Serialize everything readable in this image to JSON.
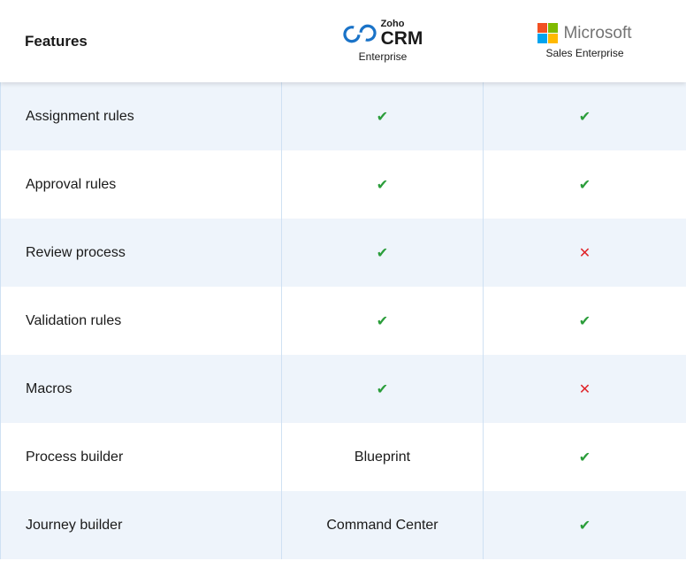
{
  "header": {
    "features": "Features",
    "zoho": {
      "brand": "Zoho",
      "product": "CRM",
      "edition": "Enterprise"
    },
    "microsoft": {
      "brand": "Microsoft",
      "edition": "Sales Enterprise"
    }
  },
  "table": {
    "row_colors": [
      "#eef4fb",
      "#ffffff"
    ],
    "rows": [
      {
        "feature": "Assignment rules",
        "zoho": {
          "text": "✔",
          "color": "#2a9d3a"
        },
        "microsoft": {
          "text": "✔",
          "color": "#2a9d3a"
        }
      },
      {
        "feature": "Approval rules",
        "zoho": {
          "text": "✔",
          "color": "#2a9d3a"
        },
        "microsoft": {
          "text": "✔",
          "color": "#2a9d3a"
        }
      },
      {
        "feature": "Review process",
        "zoho": {
          "text": "✔",
          "color": "#2a9d3a"
        },
        "microsoft": {
          "text": "✕",
          "color": "#e0262b"
        }
      },
      {
        "feature": "Validation rules",
        "zoho": {
          "text": "✔",
          "color": "#2a9d3a"
        },
        "microsoft": {
          "text": "✔",
          "color": "#2a9d3a"
        }
      },
      {
        "feature": "Macros",
        "zoho": {
          "text": "✔",
          "color": "#2a9d3a"
        },
        "microsoft": {
          "text": "✕",
          "color": "#e0262b"
        }
      },
      {
        "feature": "Process builder",
        "zoho": {
          "text": "Blueprint",
          "color": "#1a1a1a"
        },
        "microsoft": {
          "text": "✔",
          "color": "#2a9d3a"
        }
      },
      {
        "feature": "Journey builder",
        "zoho": {
          "text": "Command Center",
          "color": "#1a1a1a"
        },
        "microsoft": {
          "text": "✔",
          "color": "#2a9d3a"
        }
      }
    ]
  }
}
